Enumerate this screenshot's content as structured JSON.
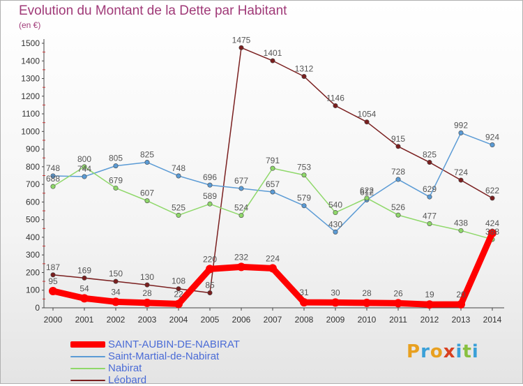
{
  "header": {
    "title": "Evolution du Montant de la Dette par Habitant",
    "unit": "(en €)"
  },
  "logo": {
    "text": "Proxiti",
    "colors": [
      "#e8a020",
      "#3aa0d8",
      "#e8a020",
      "#d84020",
      "#3aa0d8",
      "#88c040",
      "#3aa0d8"
    ]
  },
  "chart_data": {
    "type": "line",
    "title": "Evolution du Montant de la Dette par Habitant",
    "ylabel": "(en €)",
    "xlabel": "",
    "ylim": [
      0,
      1500
    ],
    "yticks": [
      0,
      100,
      200,
      300,
      400,
      500,
      600,
      700,
      800,
      900,
      1000,
      1100,
      1200,
      1300,
      1400,
      1500
    ],
    "x": [
      "2000",
      "2001",
      "2002",
      "2003",
      "2004",
      "2005",
      "2006",
      "2007",
      "2008",
      "2009",
      "2010",
      "2011",
      "2012",
      "2013",
      "2014"
    ],
    "grid": false,
    "legend_position": "bottom-left",
    "series": [
      {
        "name": "Léobard",
        "color": "#7a1f1f",
        "values": [
          187,
          169,
          150,
          130,
          108,
          85,
          1475,
          1401,
          1312,
          1146,
          1054,
          915,
          825,
          724,
          622
        ]
      },
      {
        "name": "Saint-Martial-de-Nabirat",
        "color": "#5b9bd5",
        "values": [
          748,
          744,
          805,
          825,
          748,
          696,
          677,
          657,
          579,
          430,
          612,
          728,
          629,
          992,
          924
        ]
      },
      {
        "name": "Nabirat",
        "color": "#8fd86a",
        "values": [
          688,
          800,
          679,
          607,
          525,
          589,
          524,
          791,
          753,
          540,
          622,
          526,
          477,
          438,
          388
        ]
      },
      {
        "name": "SAINT-AUBIN-DE-NABIRAT",
        "color": "#ff0000",
        "values": [
          95,
          54,
          34,
          28,
          22,
          220,
          232,
          224,
          31,
          30,
          28,
          26,
          19,
          20,
          424
        ]
      }
    ],
    "legend": [
      "SAINT-AUBIN-DE-NABIRAT",
      "Saint-Martial-de-Nabirat",
      "Nabirat",
      "Léobard"
    ]
  }
}
